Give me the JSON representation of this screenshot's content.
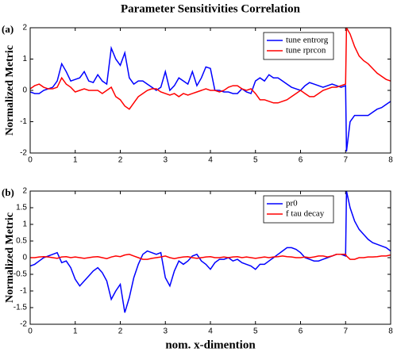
{
  "chart_data": [
    {
      "type": "line",
      "title": "Parameter Sensitivities Correlation",
      "panel_label": "(a)",
      "ylabel": "Normalized Metric",
      "x": [
        0,
        0.1,
        0.2,
        0.3,
        0.4,
        0.5,
        0.6,
        0.7,
        0.8,
        0.9,
        1,
        1.1,
        1.2,
        1.3,
        1.4,
        1.5,
        1.6,
        1.7,
        1.8,
        1.9,
        2,
        2.1,
        2.2,
        2.3,
        2.4,
        2.5,
        2.6,
        2.7,
        2.8,
        2.9,
        3,
        3.1,
        3.2,
        3.3,
        3.4,
        3.5,
        3.6,
        3.7,
        3.8,
        3.9,
        4,
        4.1,
        4.2,
        4.3,
        4.4,
        4.5,
        4.6,
        4.7,
        4.8,
        4.9,
        5,
        5.1,
        5.2,
        5.3,
        5.4,
        5.5,
        5.6,
        5.7,
        5.8,
        5.9,
        6,
        6.1,
        6.2,
        6.3,
        6.4,
        6.5,
        6.6,
        6.7,
        6.8,
        6.9,
        7,
        7.02,
        7.1,
        7.2,
        7.3,
        7.4,
        7.5,
        7.6,
        7.7,
        7.8,
        7.9,
        8
      ],
      "series": [
        {
          "name": "tune entrorg",
          "color": "#0000ff",
          "values": [
            -0.05,
            -0.1,
            -0.1,
            0,
            0.05,
            0.1,
            0.3,
            0.85,
            0.6,
            0.3,
            0.35,
            0.4,
            0.6,
            0.3,
            0.25,
            0.5,
            0.3,
            0.2,
            1.35,
            1,
            0.8,
            1.2,
            0.4,
            0.2,
            0.3,
            0.3,
            0.2,
            0.1,
            0,
            0.1,
            0.6,
            0,
            0.15,
            0.4,
            0.3,
            0.2,
            0.6,
            0.15,
            0.4,
            0.75,
            0.7,
            0,
            0,
            -0.05,
            -0.05,
            -0.1,
            -0.1,
            0.05,
            -0.05,
            -0.1,
            0.3,
            0.4,
            0.3,
            0.5,
            0.4,
            0.4,
            0.3,
            0.2,
            0.1,
            0.05,
            0,
            0.15,
            0.25,
            0.2,
            0.15,
            0.1,
            0.15,
            0.2,
            0.15,
            0.1,
            0.15,
            -1.95,
            -1,
            -0.8,
            -0.8,
            -0.8,
            -0.8,
            -0.7,
            -0.6,
            -0.55,
            -0.45,
            -0.35
          ]
        },
        {
          "name": "tune rprcon",
          "color": "#ff0000",
          "values": [
            0.05,
            0.15,
            0.2,
            0.1,
            0.05,
            0.05,
            0.1,
            0.4,
            0.2,
            0.1,
            -0.05,
            0,
            0.05,
            0,
            0,
            0,
            -0.1,
            0,
            0.1,
            -0.2,
            -0.3,
            -0.5,
            -0.6,
            -0.4,
            -0.2,
            -0.1,
            0,
            0.05,
            0.05,
            -0.05,
            -0.1,
            -0.15,
            -0.1,
            -0.2,
            -0.1,
            -0.15,
            -0.1,
            -0.05,
            0,
            0.05,
            0,
            0,
            -0.05,
            0,
            0.1,
            0.15,
            0.15,
            0.05,
            0,
            0.05,
            -0.1,
            -0.3,
            -0.3,
            -0.35,
            -0.4,
            -0.4,
            -0.35,
            -0.3,
            -0.2,
            -0.1,
            0,
            -0.1,
            -0.2,
            -0.2,
            -0.1,
            0,
            0.05,
            0.1,
            0.1,
            0.15,
            0.2,
            2,
            1.8,
            1.4,
            1.1,
            0.95,
            0.85,
            0.7,
            0.55,
            0.45,
            0.35,
            0.3
          ]
        }
      ],
      "xlim": [
        0,
        8
      ],
      "xticks": [
        0,
        1,
        2,
        3,
        4,
        5,
        6,
        7,
        8
      ],
      "ylim": [
        -2,
        2
      ],
      "yticks": [
        -2,
        -1,
        0,
        1,
        2
      ],
      "grid": false,
      "legend": "upper right"
    },
    {
      "type": "line",
      "panel_label": "(b)",
      "ylabel": "Normalized Metric",
      "xlabel": "nom. x-dimention",
      "x": [
        0,
        0.1,
        0.2,
        0.3,
        0.4,
        0.5,
        0.6,
        0.7,
        0.8,
        0.9,
        1,
        1.1,
        1.2,
        1.3,
        1.4,
        1.5,
        1.6,
        1.7,
        1.8,
        1.9,
        2,
        2.1,
        2.2,
        2.3,
        2.4,
        2.5,
        2.6,
        2.7,
        2.8,
        2.9,
        3,
        3.1,
        3.2,
        3.3,
        3.4,
        3.5,
        3.6,
        3.7,
        3.8,
        3.9,
        4,
        4.1,
        4.2,
        4.3,
        4.4,
        4.5,
        4.6,
        4.7,
        4.8,
        4.9,
        5,
        5.1,
        5.2,
        5.3,
        5.4,
        5.5,
        5.6,
        5.7,
        5.8,
        5.9,
        6,
        6.1,
        6.2,
        6.3,
        6.4,
        6.5,
        6.6,
        6.7,
        6.8,
        6.9,
        7,
        7.02,
        7.1,
        7.2,
        7.3,
        7.4,
        7.5,
        7.6,
        7.7,
        7.8,
        7.9,
        8
      ],
      "series": [
        {
          "name": "pr0",
          "color": "#0000ff",
          "values": [
            -0.25,
            -0.2,
            -0.1,
            0,
            0.05,
            0.1,
            0.15,
            -0.15,
            -0.1,
            -0.3,
            -0.65,
            -0.85,
            -0.7,
            -0.55,
            -0.4,
            -0.3,
            -0.45,
            -0.7,
            -1.25,
            -1,
            -0.8,
            -1.65,
            -1.2,
            -0.6,
            -0.2,
            0.1,
            0.2,
            0.15,
            0.1,
            0.15,
            -0.6,
            -0.85,
            -0.4,
            -0.1,
            -0.2,
            -0.1,
            0.05,
            0.1,
            -0.1,
            -0.2,
            -0.35,
            -0.15,
            -0.05,
            -0.05,
            0,
            -0.1,
            -0.05,
            -0.15,
            -0.2,
            -0.25,
            -0.35,
            -0.2,
            -0.2,
            -0.1,
            0,
            0.1,
            0.2,
            0.3,
            0.3,
            0.25,
            0.15,
            0,
            -0.05,
            -0.1,
            -0.1,
            -0.05,
            0,
            0.05,
            0.1,
            0.1,
            0.05,
            2,
            1.5,
            1.1,
            0.85,
            0.7,
            0.55,
            0.45,
            0.4,
            0.35,
            0.3,
            0.2
          ]
        },
        {
          "name": "f tau decay",
          "color": "#ff0000",
          "values": [
            0,
            0,
            0.02,
            0.03,
            0.02,
            0,
            -0.02,
            0.02,
            0.03,
            0,
            0.02,
            0,
            -0.02,
            0,
            0.02,
            0.03,
            0,
            -0.03,
            0.02,
            0.05,
            0.03,
            0.08,
            0.1,
            0.05,
            0,
            -0.05,
            -0.05,
            -0.02,
            0,
            0.02,
            0.05,
            0,
            -0.03,
            0,
            0.02,
            0.03,
            0,
            -0.02,
            0,
            0.02,
            0.03,
            0,
            0,
            0.02,
            0,
            0.02,
            0.03,
            0,
            0.02,
            0,
            -0.02,
            0,
            0.02,
            0,
            0.02,
            0.03,
            0.05,
            0.03,
            0.02,
            0,
            0,
            0.02,
            0,
            0.02,
            0.05,
            0.05,
            0.02,
            0.05,
            0.1,
            0.1,
            0.1,
            0.05,
            -0.05,
            -0.05,
            0,
            0,
            0.02,
            0.02,
            0.03,
            0.05,
            0.05,
            0.08
          ]
        }
      ],
      "xlim": [
        0,
        8
      ],
      "xticks": [
        0,
        1,
        2,
        3,
        4,
        5,
        6,
        7,
        8
      ],
      "ylim": [
        -2,
        2
      ],
      "yticks": [
        -2,
        -1.5,
        -1,
        -0.5,
        0,
        0.5,
        1,
        1.5,
        2
      ],
      "grid": false,
      "legend": "upper right"
    }
  ]
}
